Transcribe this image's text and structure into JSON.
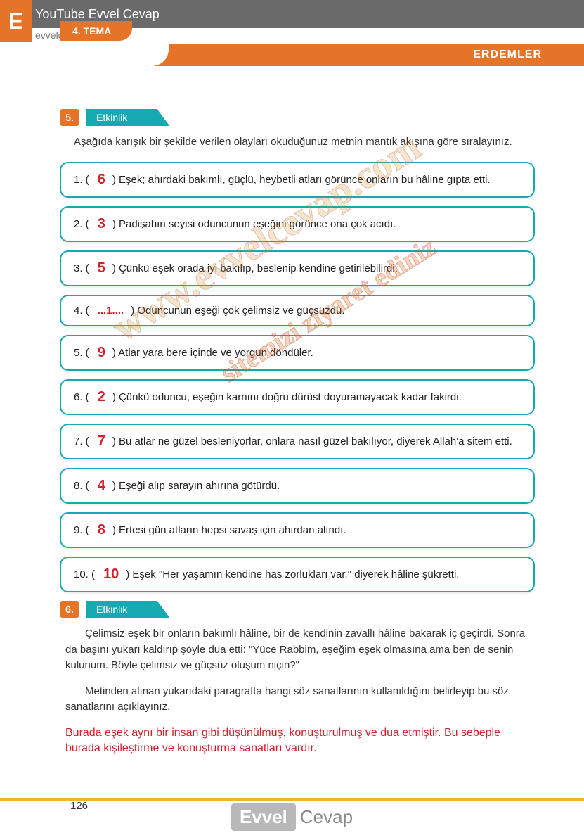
{
  "header": {
    "badge_letter": "E",
    "top_title": "YouTube Evvel Cevap",
    "sub_url": "evvelcevap.com",
    "theme_label": "4. TEMA",
    "section_title": "ERDEMLER"
  },
  "activity5": {
    "number": "5.",
    "label": "Etkinlik",
    "instruction": "Aşağıda karışık bir şekilde verilen olayları okuduğunuz metnin mantık akışına göre sıralayınız.",
    "items": [
      {
        "idx": "1.",
        "ans": "6",
        "text": ") Eşek; ahırdaki bakımlı, güçlü, heybetli atları görünce onların bu hâline gıpta etti."
      },
      {
        "idx": "2.",
        "ans": "3",
        "text": ") Padişahın seyisi oduncunun eşeğini görünce ona çok acıdı."
      },
      {
        "idx": "3.",
        "ans": "5",
        "text": ") Çünkü eşek orada iyi bakılıp, beslenip kendine getirilebilirdi."
      },
      {
        "idx": "4.",
        "ans": "...1....",
        "text": ") Oduncunun eşeği çok çelimsiz ve güçsüzdü."
      },
      {
        "idx": "5.",
        "ans": "9",
        "text": ") Atlar yara bere içinde ve yorgun döndüler."
      },
      {
        "idx": "6.",
        "ans": "2",
        "text": ") Çünkü oduncu, eşeğin karnını doğru dürüst doyuramayacak kadar fakirdi."
      },
      {
        "idx": "7.",
        "ans": "7",
        "text": ") Bu atlar ne güzel besleniyorlar, onlara nasıl güzel bakılıyor, diyerek Allah'a sitem etti."
      },
      {
        "idx": "8.",
        "ans": "4",
        "text": ") Eşeği alıp sarayın ahırına götürdü."
      },
      {
        "idx": "9.",
        "ans": "8",
        "text": ") Ertesi gün atların hepsi savaş için ahırdan alındı."
      },
      {
        "idx": "10.",
        "ans": "10",
        "text": ") Eşek \"Her yaşamın kendine has zorlukları var.\" diyerek hâline şükretti."
      }
    ]
  },
  "activity6": {
    "number": "6.",
    "label": "Etkinlik",
    "para1": "Çelimsiz eşek bir onların bakımlı hâline, bir de kendinin zavallı hâline bakarak iç geçirdi. Sonra da başını yukarı kaldırıp şöyle dua etti: \"Yüce Rabbim, eşeğim eşek olmasına ama ben de senin kulunum. Böyle çelimsiz ve güçsüz oluşum niçin?\"",
    "para2": "Metinden alınan yukarıdaki paragrafta hangi söz sanatlarının kullanıldığını belirleyip bu söz sanatlarını açıklayınız.",
    "answer": "Burada eşek aynı bir insan gibi düşünülmüş, konuşturulmuş ve dua etmiştir. Bu sebeple burada kişileştirme ve konuşturma sanatları vardır."
  },
  "footer": {
    "page_number": "126",
    "logo_left": "Evvel",
    "logo_right": "Cevap"
  },
  "watermarks": {
    "wm1": "www.evvelcevap.com",
    "wm2": "sitemizi ziyaret ediniz"
  },
  "colors": {
    "orange": "#e67428",
    "teal": "#17a9b2",
    "red": "#d3202a",
    "gray_bar": "#6a6a6a",
    "yellow_line": "#e7b72e"
  }
}
